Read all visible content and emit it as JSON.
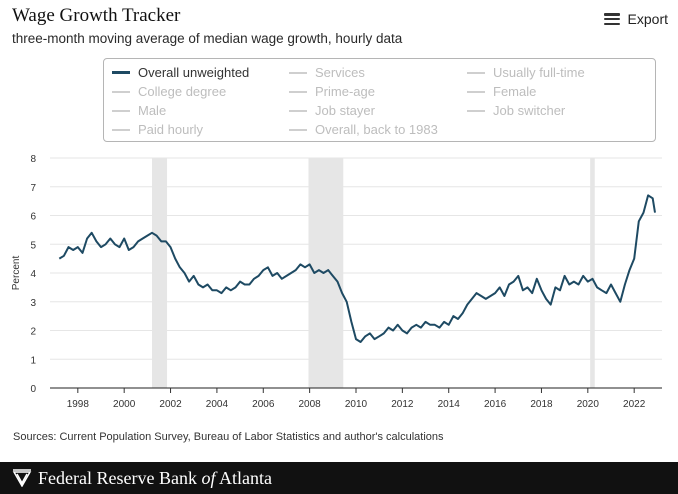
{
  "header": {
    "title": "Wage Growth Tracker",
    "subtitle": "three-month moving average of median wage growth, hourly data",
    "export_label": "Export"
  },
  "legend": {
    "items": [
      {
        "label": "Overall unweighted",
        "active": true
      },
      {
        "label": "Services",
        "active": false
      },
      {
        "label": "Usually full-time",
        "active": false
      },
      {
        "label": "College degree",
        "active": false
      },
      {
        "label": "Prime-age",
        "active": false
      },
      {
        "label": "Female",
        "active": false
      },
      {
        "label": "Male",
        "active": false
      },
      {
        "label": "Job stayer",
        "active": false
      },
      {
        "label": "Job switcher",
        "active": false
      },
      {
        "label": "Paid hourly",
        "active": false
      },
      {
        "label": "Overall, back to 1983",
        "active": false
      }
    ]
  },
  "chart_data": {
    "type": "line",
    "title": "Wage Growth Tracker",
    "subtitle": "three-month moving average of median wage growth, hourly data",
    "ylabel": "Percent",
    "xlabel": "",
    "ylim": [
      0,
      8
    ],
    "xlim": [
      1996.8,
      2023.2
    ],
    "y_ticks": [
      0,
      1,
      2,
      3,
      4,
      5,
      6,
      7,
      8
    ],
    "x_ticks": [
      1998,
      2000,
      2002,
      2004,
      2006,
      2008,
      2010,
      2012,
      2014,
      2016,
      2018,
      2020,
      2022
    ],
    "grid": true,
    "recessions": [
      [
        2001.2,
        2001.85
      ],
      [
        2007.95,
        2009.45
      ],
      [
        2020.1,
        2020.3
      ]
    ],
    "series": [
      {
        "name": "Overall unweighted",
        "color": "#1e4a63",
        "x": [
          1997.2,
          1997.4,
          1997.6,
          1997.8,
          1998.0,
          1998.2,
          1998.4,
          1998.6,
          1998.8,
          1999.0,
          1999.2,
          1999.4,
          1999.6,
          1999.8,
          2000.0,
          2000.2,
          2000.4,
          2000.6,
          2000.8,
          2001.0,
          2001.2,
          2001.4,
          2001.6,
          2001.8,
          2002.0,
          2002.2,
          2002.4,
          2002.6,
          2002.8,
          2003.0,
          2003.2,
          2003.4,
          2003.6,
          2003.8,
          2004.0,
          2004.2,
          2004.4,
          2004.6,
          2004.8,
          2005.0,
          2005.2,
          2005.4,
          2005.6,
          2005.8,
          2006.0,
          2006.2,
          2006.4,
          2006.6,
          2006.8,
          2007.0,
          2007.2,
          2007.4,
          2007.6,
          2007.8,
          2008.0,
          2008.2,
          2008.4,
          2008.6,
          2008.8,
          2009.0,
          2009.2,
          2009.4,
          2009.6,
          2009.8,
          2010.0,
          2010.2,
          2010.4,
          2010.6,
          2010.8,
          2011.0,
          2011.2,
          2011.4,
          2011.6,
          2011.8,
          2012.0,
          2012.2,
          2012.4,
          2012.6,
          2012.8,
          2013.0,
          2013.2,
          2013.4,
          2013.6,
          2013.8,
          2014.0,
          2014.2,
          2014.4,
          2014.6,
          2014.8,
          2015.0,
          2015.2,
          2015.4,
          2015.6,
          2015.8,
          2016.0,
          2016.2,
          2016.4,
          2016.6,
          2016.8,
          2017.0,
          2017.2,
          2017.4,
          2017.6,
          2017.8,
          2018.0,
          2018.2,
          2018.4,
          2018.6,
          2018.8,
          2019.0,
          2019.2,
          2019.4,
          2019.6,
          2019.8,
          2020.0,
          2020.2,
          2020.4,
          2020.6,
          2020.8,
          2021.0,
          2021.2,
          2021.4,
          2021.6,
          2021.8,
          2022.0,
          2022.2,
          2022.4,
          2022.6,
          2022.8,
          2022.9
        ],
        "y": [
          4.5,
          4.6,
          4.9,
          4.8,
          4.9,
          4.7,
          5.2,
          5.4,
          5.1,
          4.9,
          5.0,
          5.2,
          5.0,
          4.9,
          5.2,
          4.8,
          4.9,
          5.1,
          5.2,
          5.3,
          5.4,
          5.3,
          5.1,
          5.1,
          4.9,
          4.5,
          4.2,
          4.0,
          3.7,
          3.9,
          3.6,
          3.5,
          3.6,
          3.4,
          3.4,
          3.3,
          3.5,
          3.4,
          3.5,
          3.7,
          3.6,
          3.6,
          3.8,
          3.9,
          4.1,
          4.2,
          3.9,
          4.0,
          3.8,
          3.9,
          4.0,
          4.1,
          4.3,
          4.2,
          4.3,
          4.0,
          4.1,
          4.0,
          4.1,
          3.9,
          3.7,
          3.3,
          3.0,
          2.3,
          1.7,
          1.6,
          1.8,
          1.9,
          1.7,
          1.8,
          1.9,
          2.1,
          2.0,
          2.2,
          2.0,
          1.9,
          2.1,
          2.2,
          2.1,
          2.3,
          2.2,
          2.2,
          2.1,
          2.3,
          2.2,
          2.5,
          2.4,
          2.6,
          2.9,
          3.1,
          3.3,
          3.2,
          3.1,
          3.2,
          3.3,
          3.5,
          3.2,
          3.6,
          3.7,
          3.9,
          3.4,
          3.5,
          3.3,
          3.8,
          3.4,
          3.1,
          2.9,
          3.5,
          3.4,
          3.9,
          3.6,
          3.7,
          3.6,
          3.9,
          3.7,
          3.8,
          3.5,
          3.4,
          3.3,
          3.6,
          3.3,
          3.0,
          3.6,
          4.1,
          4.5,
          5.8,
          6.1,
          6.7,
          6.6,
          6.1
        ]
      }
    ]
  },
  "source": "Sources: Current Population Survey, Bureau of Labor Statistics and author's calculations",
  "footer": {
    "brand_pre": "Federal Reserve Bank ",
    "brand_of": "of",
    "brand_post": " Atlanta"
  }
}
